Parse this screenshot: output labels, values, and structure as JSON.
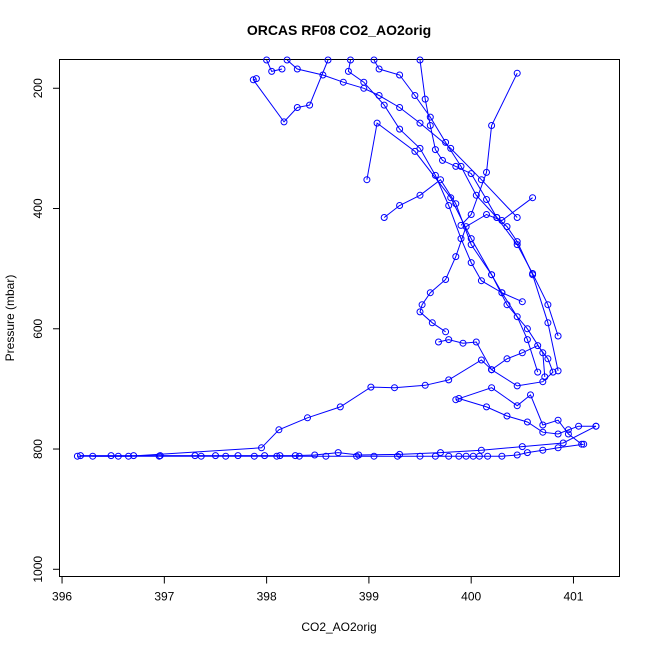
{
  "chart_data": {
    "type": "line",
    "title": "ORCAS RF08 CO2_AO2orig",
    "xlabel": "CO2_AO2orig",
    "ylabel": "Pressure (mbar)",
    "xlim": [
      395.98,
      401.45
    ],
    "ylim": [
      1012,
      153
    ],
    "y_reversed": true,
    "x_ticks": [
      396,
      397,
      398,
      399,
      400,
      401
    ],
    "y_ticks": [
      200,
      400,
      600,
      800,
      1000
    ],
    "grid": false,
    "legend": "none",
    "colors": {
      "series": "#0000ff",
      "axes": "#000000"
    },
    "series": [
      {
        "marker": "circle-open",
        "x": [
          398.0,
          398.05,
          398.15
        ],
        "y": [
          153,
          172,
          168
        ]
      },
      {
        "marker": "circle-open",
        "x": [
          398.2,
          398.3,
          398.55,
          398.75,
          398.95,
          399.1,
          399.3,
          399.5,
          399.8,
          400.1,
          400.45
        ],
        "y": [
          153,
          168,
          178,
          190,
          200,
          212,
          232,
          258,
          300,
          352,
          415
        ]
      },
      {
        "marker": "circle-open",
        "x": [
          398.6,
          398.42,
          398.3,
          398.17,
          397.87,
          397.9
        ],
        "y": [
          153,
          228,
          232,
          256,
          186,
          184
        ]
      },
      {
        "marker": "circle-open",
        "x": [
          398.82,
          398.8,
          398.95,
          399.15,
          399.3,
          399.5,
          399.65,
          399.78,
          399.9,
          400.0,
          400.1,
          400.3,
          400.45,
          400.55,
          400.65
        ],
        "y": [
          153,
          172,
          190,
          228,
          268,
          300,
          345,
          395,
          450,
          490,
          520,
          540,
          580,
          618,
          672
        ]
      },
      {
        "marker": "circle-open",
        "x": [
          399.05,
          399.1,
          399.3,
          399.45,
          399.6,
          399.75,
          399.9,
          400.05,
          400.25,
          400.45,
          400.6,
          400.75,
          400.85
        ],
        "y": [
          153,
          168,
          178,
          212,
          248,
          290,
          330,
          378,
          415,
          460,
          508,
          560,
          612
        ]
      },
      {
        "marker": "circle-open",
        "x": [
          399.5,
          399.55,
          399.6,
          399.65,
          399.72,
          399.85,
          400.0,
          400.15,
          400.25,
          400.35,
          400.45,
          400.6,
          400.75,
          400.85
        ],
        "y": [
          153,
          218,
          262,
          302,
          320,
          330,
          342,
          385,
          415,
          430,
          455,
          510,
          590,
          670
        ]
      },
      {
        "marker": "circle-open",
        "x": [
          400.45,
          400.2,
          400.15,
          400.0,
          399.9
        ],
        "y": [
          175,
          262,
          340,
          410,
          428
        ]
      },
      {
        "marker": "circle-open",
        "x": [
          398.98,
          399.08,
          399.45,
          399.8,
          400.0,
          400.2,
          400.35,
          400.55,
          400.7,
          400.72
        ],
        "y": [
          352,
          258,
          305,
          382,
          450,
          510,
          560,
          600,
          640,
          680
        ]
      },
      {
        "marker": "circle-open",
        "x": [
          399.15,
          399.3,
          399.5,
          399.7,
          399.85,
          400.0,
          400.2,
          400.3,
          400.5
        ],
        "y": [
          415,
          395,
          378,
          352,
          392,
          460,
          510,
          540,
          555
        ]
      },
      {
        "marker": "circle-open",
        "x": [
          400.6,
          400.3,
          400.15,
          399.95,
          399.85,
          399.75,
          399.6,
          399.52,
          399.5,
          399.62,
          399.75
        ],
        "y": [
          382,
          420,
          410,
          430,
          480,
          518,
          540,
          560,
          572,
          590,
          605
        ]
      },
      {
        "marker": "circle-open",
        "x": [
          399.68,
          399.78,
          399.92,
          400.05,
          400.2,
          400.35,
          400.5,
          400.65,
          400.75,
          400.8,
          400.7,
          400.45,
          400.2
        ],
        "y": [
          622,
          618,
          624,
          622,
          668,
          650,
          640,
          628,
          650,
          672,
          688,
          695,
          668
        ]
      },
      {
        "marker": "circle-open",
        "x": [
          400.2,
          400.1,
          399.78,
          399.55,
          399.25,
          399.02,
          398.72,
          398.4,
          398.12,
          397.95,
          396.65,
          396.3
        ],
        "y": [
          668,
          652,
          685,
          694,
          698,
          697,
          730,
          748,
          768,
          798,
          812,
          812
        ]
      },
      {
        "marker": "circle-open",
        "x": [
          399.85,
          400.2,
          400.45,
          400.58,
          400.7,
          400.85,
          400.95,
          401.08
        ],
        "y": [
          718,
          698,
          728,
          710,
          760,
          752,
          775,
          792
        ]
      },
      {
        "marker": "circle-open",
        "x": [
          399.88,
          400.15,
          400.35,
          400.55,
          400.7,
          400.85,
          400.95,
          401.05,
          401.22
        ],
        "y": [
          716,
          730,
          745,
          755,
          772,
          775,
          768,
          762,
          762
        ]
      },
      {
        "marker": "circle-open",
        "x": [
          401.22,
          400.9,
          400.5,
          400.1,
          399.7,
          399.3,
          398.9,
          398.7,
          398.47,
          398.28,
          398.13,
          397.98,
          397.72,
          397.5,
          397.3,
          396.96,
          396.7,
          396.48,
          396.18
        ],
        "y": [
          762,
          790,
          796,
          802,
          806,
          809,
          810,
          806,
          810,
          811,
          811,
          811,
          811,
          811,
          811,
          811,
          811,
          811,
          811
        ]
      },
      {
        "marker": "circle-open",
        "x": [
          396.15,
          396.55,
          396.95,
          397.36,
          397.6,
          397.88,
          398.1,
          398.32,
          398.58,
          398.88,
          399.05,
          399.28,
          399.5,
          399.65,
          399.78,
          399.88,
          399.95,
          400.02,
          400.08,
          400.16,
          400.3,
          400.45,
          400.55,
          400.7,
          400.85,
          401.1
        ],
        "y": [
          812,
          812,
          812,
          812,
          812,
          812,
          812,
          812,
          812,
          812,
          812,
          812,
          812,
          812,
          812,
          812,
          812,
          812,
          812,
          812,
          812,
          810,
          806,
          802,
          798,
          792
        ]
      }
    ]
  }
}
